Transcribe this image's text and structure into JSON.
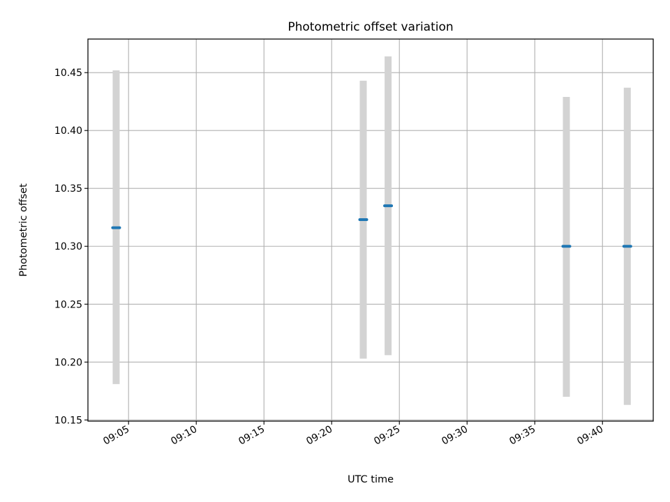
{
  "chart_data": {
    "type": "scatter",
    "title": "Photometric offset variation",
    "xlabel": "UTC time",
    "ylabel": "Photometric offset",
    "x_axis_type": "time",
    "xlim": [
      "09:02:00",
      "09:43:45"
    ],
    "ylim": [
      10.149,
      10.479
    ],
    "x_ticks": [
      "09:05",
      "09:10",
      "09:15",
      "09:20",
      "09:25",
      "09:30",
      "09:35",
      "09:40"
    ],
    "y_ticks": [
      "10.15",
      "10.20",
      "10.25",
      "10.30",
      "10.35",
      "10.40",
      "10.45"
    ],
    "grid": true,
    "legend": "none",
    "series": [
      {
        "marker_color": "#1f77b4",
        "errorbar_color": "#d3d3d3",
        "points": [
          {
            "x": "09:04:05",
            "y": 10.316,
            "yerr_low": 10.181,
            "yerr_high": 10.452
          },
          {
            "x": "09:22:20",
            "y": 10.323,
            "yerr_low": 10.203,
            "yerr_high": 10.443
          },
          {
            "x": "09:24:10",
            "y": 10.335,
            "yerr_low": 10.206,
            "yerr_high": 10.464
          },
          {
            "x": "09:37:20",
            "y": 10.3,
            "yerr_low": 10.17,
            "yerr_high": 10.429
          },
          {
            "x": "09:41:50",
            "y": 10.3,
            "yerr_low": 10.163,
            "yerr_high": 10.437
          }
        ]
      }
    ]
  }
}
